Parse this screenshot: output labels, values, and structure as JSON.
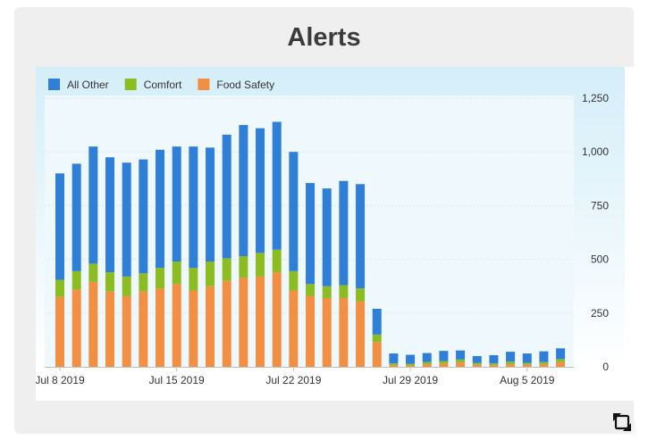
{
  "page": {
    "title": "Alerts"
  },
  "icons": {
    "expand": "expand-icon"
  },
  "colors": {
    "all_other": "#2f7ed8",
    "comfort": "#8bbc21",
    "food_safety": "#f28f43",
    "plot_bg": "#dcf2fb"
  },
  "chart_data": {
    "type": "bar",
    "stacked": true,
    "title": "Alerts",
    "xlabel": "",
    "ylabel": "",
    "ylim": [
      0,
      1250
    ],
    "yticks": [
      0,
      250,
      500,
      750,
      1000,
      1250
    ],
    "ytick_labels": [
      "0",
      "250",
      "500",
      "750",
      "1,000",
      "1,250"
    ],
    "y_axis_side": "right",
    "legend_position": "top-left",
    "grid": true,
    "x": [
      "2019-07-08",
      "2019-07-09",
      "2019-07-10",
      "2019-07-11",
      "2019-07-12",
      "2019-07-13",
      "2019-07-14",
      "2019-07-15",
      "2019-07-16",
      "2019-07-17",
      "2019-07-18",
      "2019-07-19",
      "2019-07-20",
      "2019-07-21",
      "2019-07-22",
      "2019-07-23",
      "2019-07-24",
      "2019-07-25",
      "2019-07-26",
      "2019-07-27",
      "2019-07-28",
      "2019-07-29",
      "2019-07-30",
      "2019-07-31",
      "2019-08-01",
      "2019-08-02",
      "2019-08-03",
      "2019-08-04",
      "2019-08-05",
      "2019-08-06",
      "2019-08-07"
    ],
    "xtick_labels": [
      {
        "date": "2019-07-08",
        "label": "Jul 8 2019"
      },
      {
        "date": "2019-07-15",
        "label": "Jul 15 2019"
      },
      {
        "date": "2019-07-22",
        "label": "Jul 22 2019"
      },
      {
        "date": "2019-07-29",
        "label": "Jul 29 2019"
      },
      {
        "date": "2019-08-05",
        "label": "Aug 5 2019"
      }
    ],
    "series": [
      {
        "name": "Food Safety",
        "color": "#f28f43",
        "values": [
          325,
          360,
          395,
          350,
          330,
          350,
          365,
          385,
          355,
          375,
          400,
          415,
          420,
          440,
          355,
          330,
          320,
          320,
          305,
          115,
          8,
          6,
          12,
          15,
          20,
          10,
          8,
          12,
          10,
          12,
          22
        ]
      },
      {
        "name": "Comfort",
        "color": "#8bbc21",
        "values": [
          80,
          85,
          85,
          90,
          90,
          85,
          95,
          105,
          105,
          115,
          105,
          100,
          110,
          105,
          90,
          55,
          55,
          60,
          60,
          35,
          8,
          8,
          10,
          12,
          14,
          8,
          8,
          12,
          8,
          10,
          14
        ]
      },
      {
        "name": "All Other",
        "color": "#2f7ed8",
        "values": [
          495,
          500,
          545,
          535,
          530,
          530,
          550,
          535,
          565,
          530,
          575,
          610,
          580,
          595,
          555,
          470,
          455,
          485,
          485,
          120,
          46,
          42,
          42,
          47,
          42,
          32,
          38,
          46,
          44,
          50,
          50
        ]
      }
    ]
  }
}
